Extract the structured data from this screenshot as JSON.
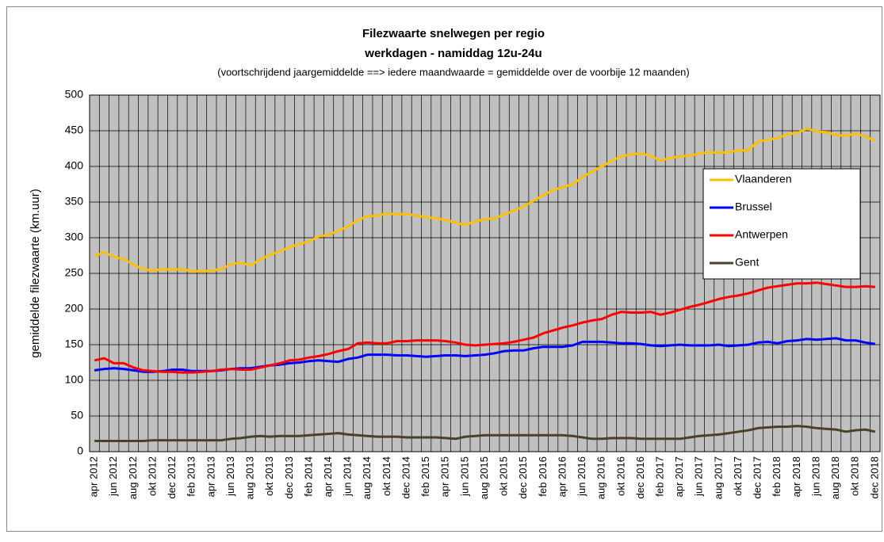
{
  "chart_data": {
    "type": "line",
    "title": "Filezwaarte snelwegen per regio",
    "subtitle": "werkdagen - namiddag 12u-24u",
    "note": "(voortschrijdend jaargemiddelde ==> iedere maandwaarde = gemiddelde over de voorbije 12 maanden)",
    "y_label": "gemiddelde filezwaarte  (km.uur)",
    "categories": [
      "apr 2012",
      null,
      "jun 2012",
      null,
      "aug 2012",
      null,
      "okt 2012",
      null,
      "dec 2012",
      null,
      "feb 2013",
      null,
      "apr 2013",
      null,
      "jun 2013",
      null,
      "aug 2013",
      null,
      "okt 2013",
      null,
      "dec 2013",
      null,
      "feb 2014",
      null,
      "apr 2014",
      null,
      "jun 2014",
      null,
      "aug 2014",
      null,
      "okt 2014",
      null,
      "dec 2014",
      null,
      "feb 2015",
      null,
      "apr 2015",
      null,
      "jun 2015",
      null,
      "aug 2015",
      null,
      "okt 2015",
      null,
      "dec 2015",
      null,
      "feb 2016",
      null,
      "apr 2016",
      null,
      "jun 2016",
      null,
      "aug 2016",
      null,
      "okt 2016",
      null,
      "dec 2016",
      null,
      "feb 2017",
      null,
      "apr 2017",
      null,
      "jun 2017",
      null,
      "aug 2017",
      null,
      "okt 2017",
      null,
      "dec 2017",
      null,
      "feb 2018",
      null,
      "apr 2018",
      null,
      "jun 2018",
      null,
      "aug 2018",
      null,
      "okt 2018",
      null,
      "dec 2018"
    ],
    "series": [
      {
        "name": "Vlaanderen",
        "color": "#ffc000",
        "values": [
          274,
          280,
          273,
          270,
          262,
          256,
          254,
          256,
          255,
          256,
          253,
          253,
          254,
          256,
          263,
          265,
          261,
          270,
          276,
          281,
          287,
          291,
          295,
          302,
          304,
          310,
          316,
          325,
          330,
          331,
          334,
          333,
          333,
          331,
          329,
          327,
          325,
          321,
          318,
          323,
          326,
          327,
          333,
          338,
          344,
          352,
          360,
          367,
          371,
          375,
          385,
          393,
          400,
          408,
          414,
          417,
          418,
          415,
          408,
          412,
          414,
          415,
          418,
          420,
          419,
          420,
          422,
          423,
          435,
          437,
          440,
          445,
          447,
          453,
          449,
          448,
          444,
          443,
          446,
          442,
          436
        ]
      },
      {
        "name": "Brussel",
        "color": "#0000ff",
        "values": [
          114,
          116,
          117,
          116,
          114,
          112,
          112,
          113,
          115,
          115,
          113,
          113,
          113,
          114,
          116,
          117,
          117,
          119,
          121,
          122,
          124,
          125,
          127,
          128,
          127,
          126,
          130,
          132,
          136,
          136,
          136,
          135,
          135,
          134,
          133,
          134,
          135,
          135,
          134,
          135,
          136,
          138,
          141,
          142,
          142,
          145,
          147,
          147,
          147,
          149,
          154,
          154,
          154,
          153,
          152,
          152,
          151,
          149,
          148,
          149,
          150,
          149,
          149,
          149,
          150,
          148,
          149,
          150,
          153,
          154,
          152,
          155,
          156,
          158,
          157,
          158,
          159,
          156,
          156,
          153,
          151
        ]
      },
      {
        "name": "Antwerpen",
        "color": "#ff0000",
        "values": [
          128,
          131,
          124,
          124,
          118,
          114,
          113,
          112,
          112,
          111,
          111,
          112,
          113,
          115,
          116,
          115,
          115,
          118,
          121,
          124,
          128,
          129,
          132,
          134,
          137,
          141,
          144,
          152,
          153,
          152,
          152,
          155,
          155,
          156,
          156,
          156,
          155,
          153,
          150,
          149,
          150,
          151,
          152,
          154,
          157,
          160,
          166,
          170,
          174,
          177,
          181,
          184,
          186,
          192,
          196,
          195,
          195,
          196,
          192,
          195,
          199,
          203,
          206,
          210,
          214,
          217,
          219,
          222,
          226,
          230,
          232,
          234,
          236,
          236,
          237,
          235,
          233,
          231,
          231,
          232,
          231
        ]
      },
      {
        "name": "Gent",
        "color": "#4a4128",
        "values": [
          15,
          15,
          15,
          15,
          15,
          15,
          16,
          16,
          16,
          16,
          16,
          16,
          16,
          16,
          18,
          19,
          21,
          22,
          21,
          22,
          22,
          22,
          23,
          24,
          25,
          26,
          24,
          23,
          22,
          21,
          21,
          21,
          20,
          20,
          20,
          20,
          19,
          18,
          21,
          22,
          23,
          23,
          23,
          23,
          23,
          23,
          23,
          23,
          23,
          22,
          20,
          18,
          18,
          19,
          19,
          19,
          18,
          18,
          18,
          18,
          18,
          20,
          22,
          23,
          24,
          26,
          28,
          30,
          33,
          34,
          35,
          35,
          36,
          35,
          33,
          32,
          31,
          28,
          30,
          31,
          28
        ]
      }
    ],
    "ylim": [
      0,
      500
    ],
    "yticks": [
      0,
      50,
      100,
      150,
      200,
      250,
      300,
      350,
      400,
      450,
      500
    ],
    "grid": true,
    "legend": "right"
  }
}
